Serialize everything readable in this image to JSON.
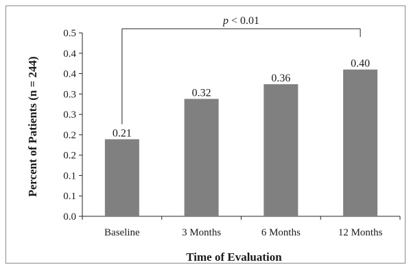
{
  "chart_data": {
    "type": "bar",
    "categories": [
      "Baseline",
      "3 Months",
      "6 Months",
      "12 Months"
    ],
    "values": [
      0.21,
      0.32,
      0.36,
      0.4
    ],
    "data_labels": [
      "0.21",
      "0.32",
      "0.36",
      "0.40"
    ],
    "bar_color": "#808080",
    "xlabel": "Time of Evaluation",
    "ylabel": "Percent of Patients (n = 244)",
    "y_ticks": [
      "0.0",
      "0.1",
      "0.1",
      "0.2",
      "0.2",
      "0.3",
      "0.3",
      "0.4",
      "0.4",
      "0.5"
    ],
    "grid": false,
    "legend": "none",
    "annotation": {
      "p_symbol": "p",
      "p_rest": " < 0.01",
      "from_category": "Baseline",
      "to_category": "12 Months"
    }
  }
}
